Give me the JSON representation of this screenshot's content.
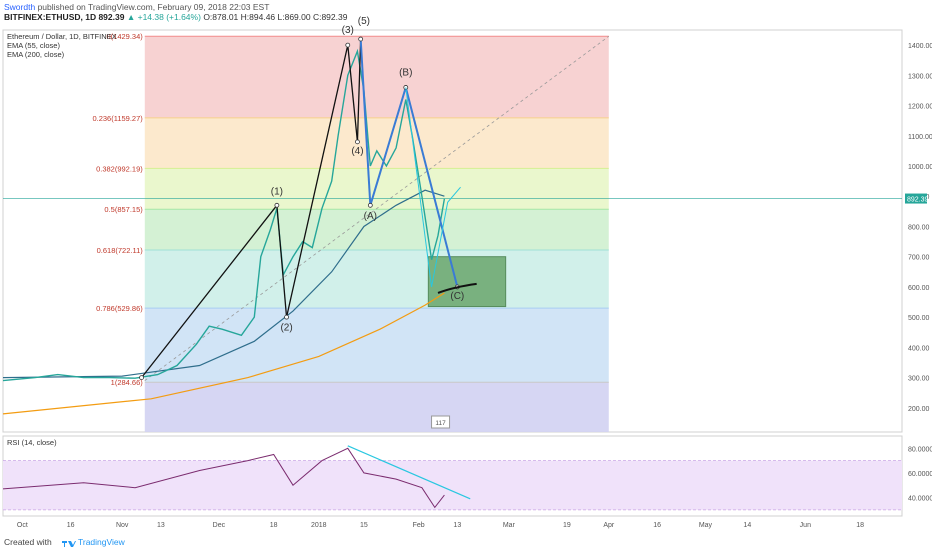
{
  "header": {
    "author": "Swordth",
    "published": "published on TradingView.com, February 09, 2018 22:03 EST",
    "symbol": "BITFINEX:ETHUSD, 1D 892.39",
    "change": "▲ +14.38 (+1.64%)",
    "ohlc": "O:878.01 H:894.46 L:869.00 C:892.39"
  },
  "footer": {
    "created": "Created with",
    "brand": "TradingView"
  },
  "chart_data": {
    "type": "line",
    "title": "Ethereum / Dollar, 1D, BITFINEX",
    "indicators": [
      "EMA (55, close)",
      "EMA (200, close)"
    ],
    "rsi_label": "RSI (14, close)",
    "x_ticks": [
      "Oct",
      "16",
      "Nov",
      "13",
      "Dec",
      "18",
      "2018",
      "15",
      "Feb",
      "13",
      "Mar",
      "19",
      "Apr",
      "16",
      "May",
      "14",
      "Jun",
      "18"
    ],
    "y_ticks": [
      200,
      300,
      400,
      500,
      600,
      700,
      800,
      900,
      1000,
      1100,
      1200,
      1300,
      1400
    ],
    "ylim": [
      120,
      1450
    ],
    "last_price": "892.39",
    "rsi_ticks": [
      "80.0000",
      "60.0000",
      "40.0000"
    ],
    "rsi_flag": "117",
    "fib_levels": [
      {
        "label": "0(1429.34)",
        "value": 1429.34,
        "color": "#f28b8b"
      },
      {
        "label": "0.236(1159.27)",
        "value": 1159.27,
        "color": "#f7d28a"
      },
      {
        "label": "0.382(992.19)",
        "value": 992.19,
        "color": "#d6ef93"
      },
      {
        "label": "0.5(857.15)",
        "value": 857.15,
        "color": "#a5e8a5"
      },
      {
        "label": "0.618(722.11)",
        "value": 722.11,
        "color": "#9fe1d6"
      },
      {
        "label": "0.786(529.86)",
        "value": 529.86,
        "color": "#a8cdf2"
      },
      {
        "label": "1(284.66)",
        "value": 284.66,
        "color": "#c8c8c8"
      }
    ],
    "waves": [
      {
        "label": "(1)",
        "value": 870
      },
      {
        "label": "(2)",
        "value": 500
      },
      {
        "label": "(3)",
        "value": 1400
      },
      {
        "label": "(4)",
        "value": 1080
      },
      {
        "label": "(5)",
        "value": 1420
      },
      {
        "label": "(A)",
        "value": 870
      },
      {
        "label": "(B)",
        "value": 1260
      },
      {
        "label": "(C)",
        "value": 600
      }
    ],
    "price": [
      [
        "2017-09-25",
        290
      ],
      [
        "2017-10-05",
        300
      ],
      [
        "2017-10-12",
        310
      ],
      [
        "2017-10-20",
        300
      ],
      [
        "2017-10-28",
        300
      ],
      [
        "2017-11-05",
        298
      ],
      [
        "2017-11-12",
        310
      ],
      [
        "2017-11-18",
        340
      ],
      [
        "2017-11-24",
        410
      ],
      [
        "2017-11-28",
        470
      ],
      [
        "2017-12-02",
        460
      ],
      [
        "2017-12-08",
        440
      ],
      [
        "2017-12-12",
        500
      ],
      [
        "2017-12-14",
        700
      ],
      [
        "2017-12-17",
        790
      ],
      [
        "2017-12-19",
        860
      ],
      [
        "2017-12-21",
        640
      ],
      [
        "2017-12-24",
        700
      ],
      [
        "2017-12-27",
        750
      ],
      [
        "2017-12-30",
        730
      ],
      [
        "2018-01-02",
        860
      ],
      [
        "2018-01-05",
        950
      ],
      [
        "2018-01-07",
        1100
      ],
      [
        "2018-01-10",
        1300
      ],
      [
        "2018-01-13",
        1380
      ],
      [
        "2018-01-15",
        1250
      ],
      [
        "2018-01-17",
        1000
      ],
      [
        "2018-01-19",
        1050
      ],
      [
        "2018-01-22",
        1000
      ],
      [
        "2018-01-25",
        1060
      ],
      [
        "2018-01-28",
        1220
      ],
      [
        "2018-01-30",
        1100
      ],
      [
        "2018-02-02",
        900
      ],
      [
        "2018-02-05",
        690
      ],
      [
        "2018-02-07",
        770
      ],
      [
        "2018-02-09",
        892
      ]
    ],
    "ema55": [
      [
        "2017-09-25",
        300
      ],
      [
        "2017-11-01",
        305
      ],
      [
        "2017-11-25",
        340
      ],
      [
        "2017-12-12",
        420
      ],
      [
        "2017-12-24",
        520
      ],
      [
        "2018-01-05",
        650
      ],
      [
        "2018-01-15",
        800
      ],
      [
        "2018-01-25",
        870
      ],
      [
        "2018-02-03",
        920
      ],
      [
        "2018-02-09",
        900
      ]
    ],
    "ema200": [
      [
        "2017-09-25",
        180
      ],
      [
        "2017-11-10",
        230
      ],
      [
        "2017-12-10",
        300
      ],
      [
        "2018-01-01",
        370
      ],
      [
        "2018-01-20",
        460
      ],
      [
        "2018-02-03",
        540
      ],
      [
        "2018-02-09",
        580
      ]
    ],
    "rsi": [
      [
        "2017-09-25",
        47
      ],
      [
        "2017-10-20",
        52
      ],
      [
        "2017-11-05",
        48
      ],
      [
        "2017-11-25",
        62
      ],
      [
        "2017-12-10",
        70
      ],
      [
        "2017-12-18",
        75
      ],
      [
        "2017-12-24",
        50
      ],
      [
        "2018-01-02",
        70
      ],
      [
        "2018-01-10",
        80
      ],
      [
        "2018-01-15",
        60
      ],
      [
        "2018-01-25",
        55
      ],
      [
        "2018-02-02",
        48
      ],
      [
        "2018-02-06",
        32
      ],
      [
        "2018-02-09",
        42
      ]
    ]
  }
}
